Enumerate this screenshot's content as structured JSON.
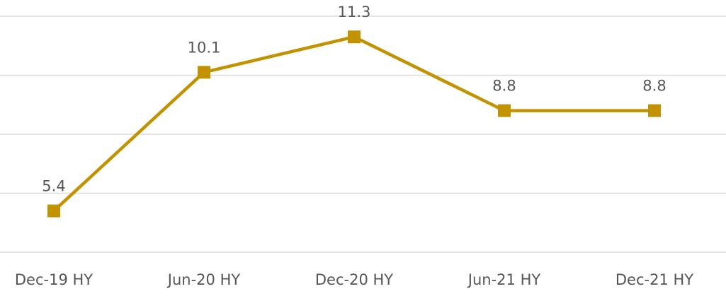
{
  "chart_data": {
    "type": "line",
    "categories": [
      "Dec-19 HY",
      "Jun-20 HY",
      "Dec-20 HY",
      "Jun-21 HY",
      "Dec-21 HY"
    ],
    "series": [
      {
        "color": "#c39200",
        "values": [
          5.4,
          10.1,
          11.3,
          8.8,
          8.8
        ]
      }
    ],
    "ylim": [
      4,
      12
    ],
    "yticks": [
      4,
      6,
      8,
      10,
      12
    ],
    "grid": true
  }
}
